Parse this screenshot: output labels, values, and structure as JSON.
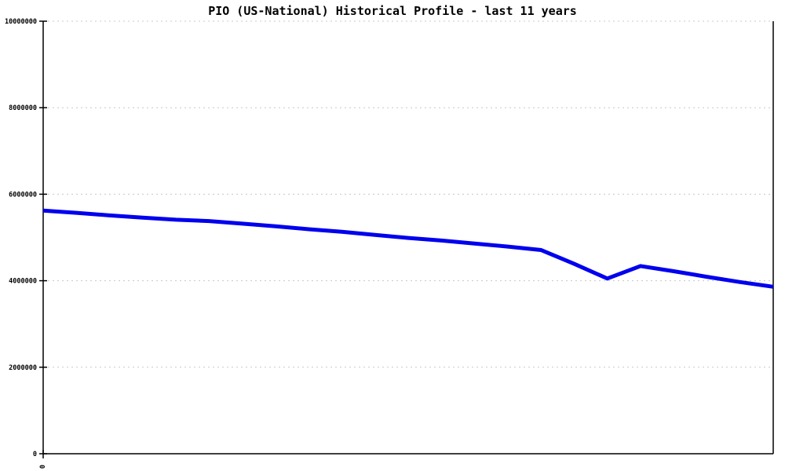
{
  "chart_data": {
    "type": "line",
    "title": "PIO (US-National) Historical Profile - last 11 years",
    "values": [
      5620000,
      5570000,
      5510000,
      5460000,
      5410000,
      5380000,
      5320000,
      5260000,
      5190000,
      5130000,
      5060000,
      4990000,
      4930000,
      4860000,
      4790000,
      4710000,
      4390000,
      4050000,
      4340000,
      4220000,
      4090000,
      3970000,
      3860000
    ],
    "n_points": 23,
    "ylim": [
      0,
      10000000
    ],
    "yticks": [
      0,
      2000000,
      4000000,
      6000000,
      8000000,
      10000000
    ],
    "ytick_labels": [
      "0",
      "2000000",
      "4000000",
      "6000000",
      "8000000",
      "10000000"
    ],
    "xtick_labels": [
      "0"
    ],
    "line_color": "#0000ee",
    "grid_color": "#c8c8c8",
    "axis_color": "#000000",
    "background_color": "#ffffff",
    "grid": "horizontal-dotted",
    "legend": "none"
  }
}
